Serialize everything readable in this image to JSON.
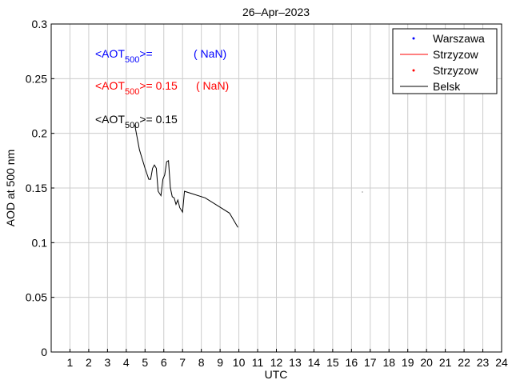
{
  "chart_data": {
    "type": "line",
    "title": "26–Apr–2023",
    "xlabel": "UTC",
    "ylabel": "AOD at 500 nm",
    "xlim": [
      0,
      24
    ],
    "ylim": [
      0,
      0.3
    ],
    "xticks": [
      1,
      2,
      3,
      4,
      5,
      6,
      7,
      8,
      9,
      10,
      11,
      12,
      13,
      14,
      15,
      16,
      17,
      18,
      19,
      20,
      21,
      22,
      23,
      24
    ],
    "yticks": [
      0,
      0.05,
      0.1,
      0.15,
      0.2,
      0.25,
      0.3
    ],
    "ytick_labels": [
      "0",
      "0.05",
      "0.1",
      "0.15",
      "0.2",
      "0.25",
      "0.3"
    ],
    "grid": true,
    "legend_position": "top-right",
    "series": [
      {
        "name": "Warszawa",
        "style": "dot",
        "color": "#0000ff",
        "points": []
      },
      {
        "name": "Strzyzow",
        "style": "line",
        "color": "#ff0000",
        "points": []
      },
      {
        "name": "Strzyzow",
        "style": "dot",
        "color": "#ff0000",
        "points": []
      },
      {
        "name": "Belsk",
        "style": "line",
        "color": "#000000",
        "points": [
          [
            4.45,
            0.208
          ],
          [
            4.7,
            0.185
          ],
          [
            5.0,
            0.168
          ],
          [
            5.2,
            0.158
          ],
          [
            5.3,
            0.158
          ],
          [
            5.4,
            0.168
          ],
          [
            5.5,
            0.171
          ],
          [
            5.6,
            0.168
          ],
          [
            5.7,
            0.147
          ],
          [
            5.85,
            0.143
          ],
          [
            5.95,
            0.158
          ],
          [
            6.05,
            0.162
          ],
          [
            6.15,
            0.174
          ],
          [
            6.25,
            0.175
          ],
          [
            6.35,
            0.15
          ],
          [
            6.45,
            0.142
          ],
          [
            6.55,
            0.141
          ],
          [
            6.65,
            0.135
          ],
          [
            6.75,
            0.139
          ],
          [
            6.85,
            0.132
          ],
          [
            7.0,
            0.128
          ],
          [
            7.1,
            0.147
          ],
          [
            8.2,
            0.141
          ],
          [
            9.5,
            0.127
          ],
          [
            9.95,
            0.114
          ]
        ]
      }
    ],
    "annotations": [
      {
        "label_pre": "<AOT",
        "label_sub": "500",
        "label_post": ">=",
        "value": "",
        "nan": "( NaN)",
        "color": "#0000ff"
      },
      {
        "label_pre": "<AOT",
        "label_sub": "500",
        "label_post": ">=",
        "value": "0.15",
        "nan": "( NaN)",
        "color": "#ff0000"
      },
      {
        "label_pre": "<AOT",
        "label_sub": "500",
        "label_post": ">=",
        "value": "0.15",
        "nan": "",
        "color": "#000000"
      }
    ]
  }
}
